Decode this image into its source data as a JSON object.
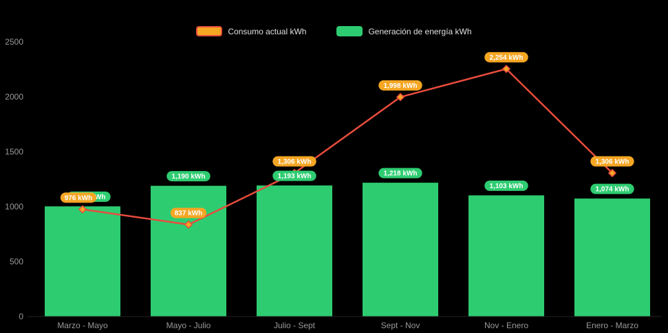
{
  "legend": {
    "consumption": "Consumo actual kWh",
    "generation": "Generación de energía kWh"
  },
  "colors": {
    "background": "#000000",
    "bar_green": "#2ECC71",
    "line_red": "#E74C3C",
    "marker_orange": "#F5A623",
    "axis_text": "#9A9A9A",
    "pill_text": "#FFFFFF"
  },
  "chart_data": {
    "type": "combo",
    "categories": [
      "Marzo - Mayo",
      "Mayo - Julio",
      "Julio - Sept",
      "Sept - Nov",
      "Nov - Enero",
      "Enero - Marzo"
    ],
    "series": [
      {
        "name": "Consumo actual kWh",
        "type": "line",
        "color": "#E74C3C",
        "marker_fill": "#F5A623",
        "values": [
          976,
          837,
          1306,
          1998,
          2254,
          1306
        ],
        "labels": [
          "976 kWh",
          "837 kWh",
          "1,306 kWh",
          "1,998 kWh",
          "2,254 kWh",
          "1,306 kWh"
        ]
      },
      {
        "name": "Generación de energía kWh",
        "type": "bar",
        "color": "#2ECC71",
        "values": [
          1003,
          1190,
          1193,
          1218,
          1103,
          1074
        ],
        "labels": [
          "1,003 kWh",
          "1,190 kWh",
          "1,193 kWh",
          "1,218 kWh",
          "1,103 kWh",
          "1,074 kWh"
        ]
      }
    ],
    "ylim": [
      0,
      2500
    ],
    "yticks": [
      0,
      500,
      1000,
      1500,
      2000,
      2500
    ],
    "grid": false,
    "legend_position": "top"
  }
}
